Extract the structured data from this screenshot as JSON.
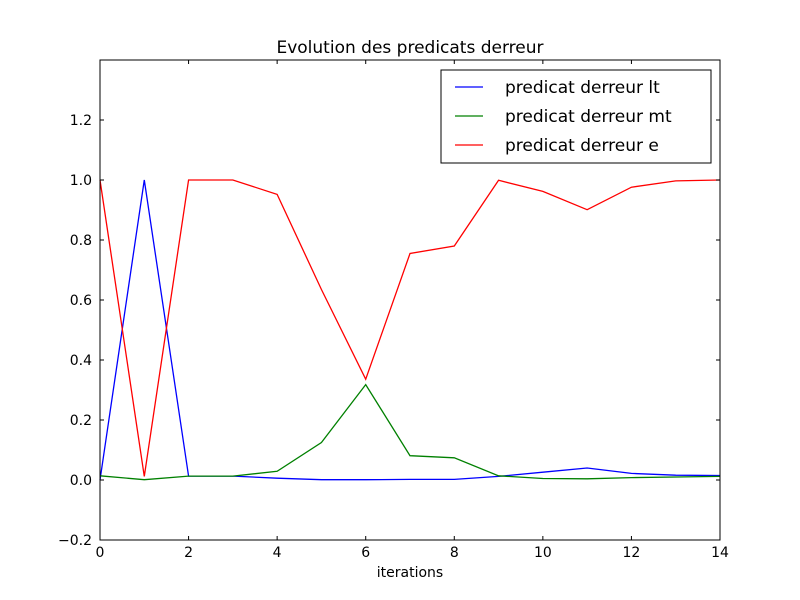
{
  "chart_data": {
    "type": "line",
    "title": "Evolution des predicats derreur",
    "xlabel": "iterations",
    "ylabel": "",
    "xlim": [
      0,
      14
    ],
    "ylim": [
      -0.2,
      1.4
    ],
    "xticks": [
      0,
      2,
      4,
      6,
      8,
      10,
      12,
      14
    ],
    "yticks": [
      -0.2,
      0.0,
      0.2,
      0.4,
      0.6,
      0.8,
      1.0,
      1.2
    ],
    "ytick_labels": [
      "−0.2",
      "0.0",
      "0.2",
      "0.4",
      "0.6",
      "0.8",
      "1.0",
      "1.2"
    ],
    "grid": false,
    "legend_position": "top-right",
    "x": [
      0,
      1,
      2,
      3,
      4,
      5,
      6,
      7,
      8,
      9,
      10,
      11,
      12,
      13,
      14
    ],
    "series": [
      {
        "name": "predicat derreur lt",
        "color": "#0000ff",
        "values": [
          0.0,
          1.0,
          0.013,
          0.013,
          0.006,
          0.001,
          0.001,
          0.002,
          0.002,
          0.012,
          0.026,
          0.04,
          0.022,
          0.016,
          0.015
        ]
      },
      {
        "name": "predicat derreur mt",
        "color": "#008000",
        "values": [
          0.014,
          0.001,
          0.013,
          0.013,
          0.029,
          0.125,
          0.318,
          0.081,
          0.074,
          0.014,
          0.005,
          0.004,
          0.008,
          0.01,
          0.012
        ]
      },
      {
        "name": "predicat derreur e",
        "color": "#ff0000",
        "values": [
          1.0,
          0.012,
          1.0,
          1.0,
          0.952,
          0.635,
          0.336,
          0.755,
          0.78,
          0.999,
          0.962,
          0.901,
          0.976,
          0.997,
          1.0
        ]
      }
    ]
  }
}
